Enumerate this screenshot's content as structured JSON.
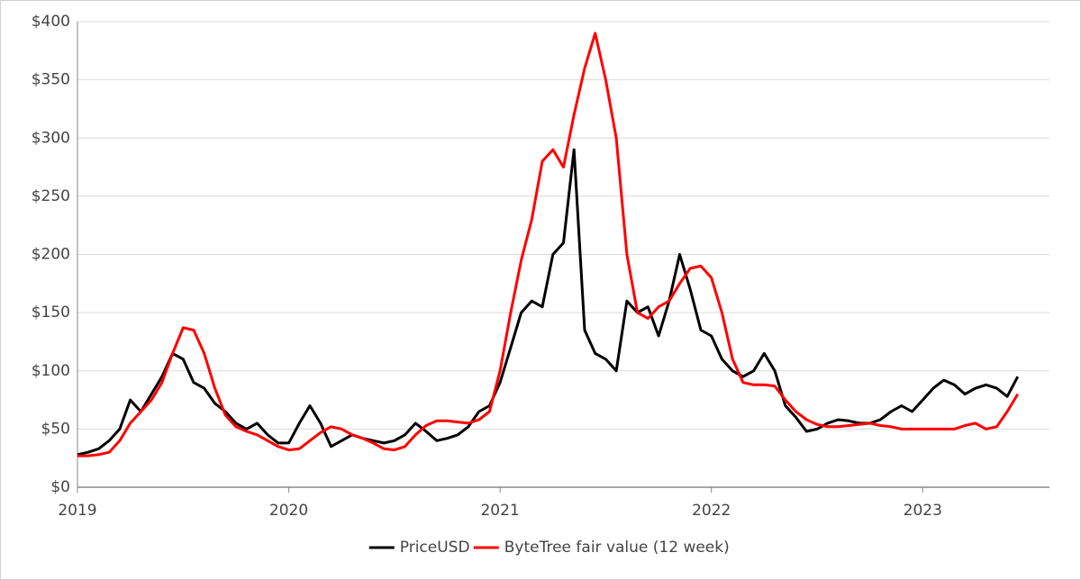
{
  "chart_data": {
    "type": "line",
    "x": [
      2019.0,
      2019.05,
      2019.1,
      2019.15,
      2019.2,
      2019.25,
      2019.3,
      2019.35,
      2019.4,
      2019.45,
      2019.5,
      2019.55,
      2019.6,
      2019.65,
      2019.7,
      2019.75,
      2019.8,
      2019.85,
      2019.9,
      2019.95,
      2020.0,
      2020.05,
      2020.1,
      2020.15,
      2020.2,
      2020.25,
      2020.3,
      2020.35,
      2020.4,
      2020.45,
      2020.5,
      2020.55,
      2020.6,
      2020.65,
      2020.7,
      2020.75,
      2020.8,
      2020.85,
      2020.9,
      2020.95,
      2021.0,
      2021.05,
      2021.1,
      2021.15,
      2021.2,
      2021.25,
      2021.3,
      2021.35,
      2021.4,
      2021.45,
      2021.5,
      2021.55,
      2021.6,
      2021.65,
      2021.7,
      2021.75,
      2021.8,
      2021.85,
      2021.9,
      2021.95,
      2022.0,
      2022.05,
      2022.1,
      2022.15,
      2022.2,
      2022.25,
      2022.3,
      2022.35,
      2022.4,
      2022.45,
      2022.5,
      2022.55,
      2022.6,
      2022.65,
      2022.7,
      2022.75,
      2022.8,
      2022.85,
      2022.9,
      2022.95,
      2023.0,
      2023.05,
      2023.1,
      2023.15,
      2023.2,
      2023.25,
      2023.3,
      2023.35,
      2023.4,
      2023.45
    ],
    "series": [
      {
        "name": "PriceUSD",
        "color": "#000000",
        "values": [
          28,
          30,
          33,
          40,
          50,
          75,
          65,
          80,
          95,
          115,
          110,
          90,
          85,
          72,
          65,
          55,
          50,
          55,
          45,
          38,
          38,
          55,
          70,
          55,
          35,
          40,
          45,
          42,
          40,
          38,
          40,
          45,
          55,
          48,
          40,
          42,
          45,
          52,
          65,
          70,
          90,
          120,
          150,
          160,
          155,
          200,
          210,
          290,
          135,
          115,
          110,
          100,
          160,
          150,
          155,
          130,
          160,
          200,
          170,
          135,
          130,
          110,
          100,
          95,
          100,
          115,
          100,
          70,
          60,
          48,
          50,
          55,
          58,
          57,
          55,
          55,
          58,
          65,
          70,
          65,
          75,
          85,
          92,
          88,
          80,
          85,
          88,
          85,
          78,
          95
        ]
      },
      {
        "name": "ByteTree fair value (12 week)",
        "color": "#ff0000",
        "values": [
          27,
          27,
          28,
          30,
          40,
          55,
          65,
          75,
          90,
          115,
          137,
          135,
          115,
          85,
          62,
          52,
          48,
          45,
          40,
          35,
          32,
          33,
          40,
          47,
          52,
          50,
          45,
          42,
          38,
          33,
          32,
          35,
          45,
          53,
          57,
          57,
          56,
          55,
          58,
          65,
          100,
          150,
          195,
          230,
          280,
          290,
          275,
          320,
          360,
          390,
          350,
          300,
          200,
          150,
          145,
          155,
          160,
          175,
          188,
          190,
          180,
          150,
          110,
          90,
          88,
          88,
          87,
          75,
          65,
          58,
          54,
          52,
          52,
          53,
          54,
          55,
          53,
          52,
          50,
          50,
          50,
          50,
          50,
          50,
          53,
          55,
          50,
          52,
          65,
          80
        ]
      }
    ],
    "xlim": [
      2019,
      2023.6
    ],
    "xticks": [
      2019,
      2020,
      2021,
      2022,
      2023
    ],
    "ylim": [
      0,
      400
    ],
    "yticks": [
      {
        "value": 0,
        "label": "$0"
      },
      {
        "value": 50,
        "label": "$50"
      },
      {
        "value": 100,
        "label": "$100"
      },
      {
        "value": 150,
        "label": "$150"
      },
      {
        "value": 200,
        "label": "$200"
      },
      {
        "value": 250,
        "label": "$250"
      },
      {
        "value": 300,
        "label": "$300"
      },
      {
        "value": 350,
        "label": "$350"
      },
      {
        "value": 400,
        "label": "$400"
      }
    ],
    "grid": true,
    "legend": "bottom"
  }
}
